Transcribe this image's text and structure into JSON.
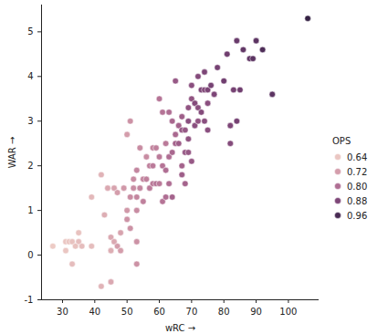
{
  "chart_data": {
    "type": "scatter",
    "x_label": "wRC",
    "y_label": "WAR",
    "legend_title": "OPS",
    "legend": "right",
    "x": [
      27,
      31,
      32,
      31,
      33,
      33,
      35,
      35,
      34,
      36,
      39,
      39,
      42,
      43,
      42,
      44,
      45,
      45,
      45,
      46,
      46,
      47,
      47,
      48,
      48,
      49,
      50,
      50,
      50,
      51,
      51,
      51,
      52,
      52,
      53,
      53,
      53,
      53,
      53,
      54,
      54,
      55,
      55,
      56,
      56,
      57,
      57,
      58,
      58,
      58,
      59,
      59,
      60,
      60,
      60,
      61,
      61,
      61,
      62,
      62,
      62,
      63,
      63,
      63,
      64,
      64,
      64,
      65,
      65,
      65,
      66,
      66,
      67,
      67,
      67,
      67,
      68,
      68,
      68,
      69,
      69,
      69,
      69,
      70,
      70,
      70,
      71,
      71,
      72,
      72,
      72,
      73,
      73,
      74,
      74,
      74,
      75,
      75,
      75,
      76,
      77,
      78,
      80,
      81,
      82,
      82,
      83,
      84,
      84,
      85,
      86,
      88,
      89,
      90,
      92,
      95,
      106
    ],
    "y": [
      0.2,
      0.3,
      0.3,
      0.1,
      0.3,
      -0.2,
      0.5,
      0.3,
      0.2,
      0.2,
      1.3,
      0.2,
      1.8,
      0.9,
      -0.7,
      1.5,
      0.1,
      -0.6,
      0.4,
      0.3,
      1.5,
      1.4,
      0.2,
      0.1,
      0.5,
      1.5,
      0.8,
      2.7,
      1.0,
      3.0,
      1.3,
      0.6,
      1.5,
      1.7,
      1.9,
      1.3,
      1.0,
      0.3,
      -0.2,
      2.4,
      1.5,
      1.7,
      1.2,
      2.2,
      1.7,
      2.0,
      1.5,
      2.4,
      2.0,
      1.6,
      2.4,
      1.6,
      3.5,
      2.2,
      1.6,
      3.2,
      1.2,
      2.0,
      2.5,
      1.9,
      1.3,
      3.2,
      2.2,
      1.6,
      3.0,
      2.3,
      1.3,
      3.9,
      2.5,
      2.7,
      2.9,
      2.5,
      3.1,
      2.8,
      2.0,
      1.8,
      2.8,
      2.3,
      1.6,
      3.3,
      3.0,
      2.6,
      2.3,
      3.8,
      3.5,
      2.1,
      3.4,
      2.9,
      3.3,
      3.0,
      4.0,
      3.7,
      3.2,
      4.1,
      3.7,
      3.0,
      3.4,
      3.7,
      2.8,
      3.8,
      3.6,
      4.2,
      3.9,
      4.5,
      2.5,
      2.9,
      3.7,
      4.8,
      3.0,
      3.7,
      4.6,
      4.4,
      4.4,
      4.8,
      4.6,
      3.6,
      5.3
    ],
    "ops": [
      0.63,
      0.64,
      0.64,
      0.64,
      0.65,
      0.66,
      0.65,
      0.66,
      0.65,
      0.66,
      0.67,
      0.66,
      0.68,
      0.69,
      0.68,
      0.7,
      0.69,
      0.7,
      0.7,
      0.7,
      0.71,
      0.72,
      0.72,
      0.72,
      0.71,
      0.73,
      0.74,
      0.72,
      0.73,
      0.74,
      0.75,
      0.74,
      0.75,
      0.75,
      0.76,
      0.76,
      0.75,
      0.74,
      0.74,
      0.75,
      0.76,
      0.76,
      0.77,
      0.75,
      0.77,
      0.77,
      0.78,
      0.76,
      0.78,
      0.78,
      0.77,
      0.79,
      0.79,
      0.78,
      0.78,
      0.79,
      0.79,
      0.79,
      0.78,
      0.8,
      0.8,
      0.8,
      0.8,
      0.8,
      0.81,
      0.81,
      0.82,
      0.84,
      0.82,
      0.81,
      0.82,
      0.83,
      0.83,
      0.84,
      0.82,
      0.83,
      0.84,
      0.84,
      0.82,
      0.85,
      0.86,
      0.85,
      0.84,
      0.86,
      0.85,
      0.84,
      0.87,
      0.86,
      0.86,
      0.85,
      0.87,
      0.88,
      0.87,
      0.88,
      0.87,
      0.86,
      0.86,
      0.88,
      0.86,
      0.89,
      0.88,
      0.89,
      0.9,
      0.9,
      0.87,
      0.88,
      0.89,
      0.91,
      0.89,
      0.9,
      0.92,
      0.92,
      0.93,
      0.93,
      0.95,
      0.93,
      0.99
    ],
    "xlim": [
      23.5,
      109.5
    ],
    "ylim": [
      -1,
      5.6
    ],
    "xticks": [
      30,
      40,
      50,
      60,
      70,
      80,
      90,
      100
    ],
    "yticks": [
      -1,
      0,
      1,
      2,
      3,
      4,
      5
    ],
    "ops_range": [
      0.62,
      1.0
    ],
    "ops_ticks": [
      0.64,
      0.72,
      0.8,
      0.88,
      0.96
    ]
  }
}
